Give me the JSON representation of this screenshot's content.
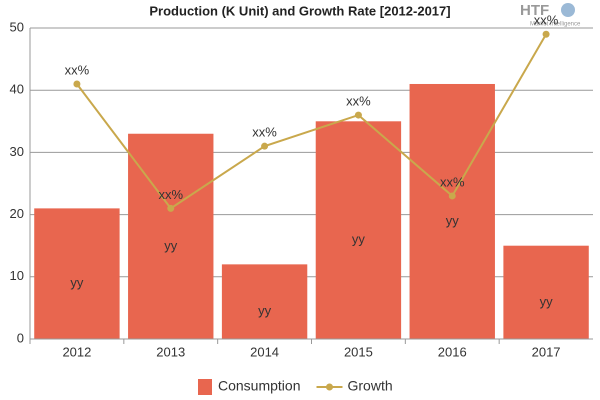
{
  "logo": {
    "mark": "HTF",
    "subtitle": "Market Intelligence"
  },
  "chart_data": {
    "type": "bar",
    "title": "Production (K Unit) and Growth Rate [2012-2017]",
    "categories": [
      "2012",
      "2013",
      "2014",
      "2015",
      "2016",
      "2017"
    ],
    "series": [
      {
        "name": "Consumption",
        "type": "bar",
        "color": "#e8664f",
        "values": [
          21,
          33,
          12,
          35,
          41,
          15
        ],
        "value_labels": [
          "yy",
          "yy",
          "yy",
          "yy",
          "yy",
          "yy"
        ]
      },
      {
        "name": "Growth",
        "type": "line",
        "color": "#c9a84c",
        "values": [
          41,
          21,
          31,
          36,
          23,
          49
        ],
        "value_labels": [
          "xx%",
          "xx%",
          "xx%",
          "xx%",
          "xx%",
          "xx%"
        ]
      }
    ],
    "ylim": [
      0,
      50
    ],
    "yticks": [
      0,
      10,
      20,
      30,
      40,
      50
    ],
    "grid": true,
    "legend": "bottom"
  }
}
